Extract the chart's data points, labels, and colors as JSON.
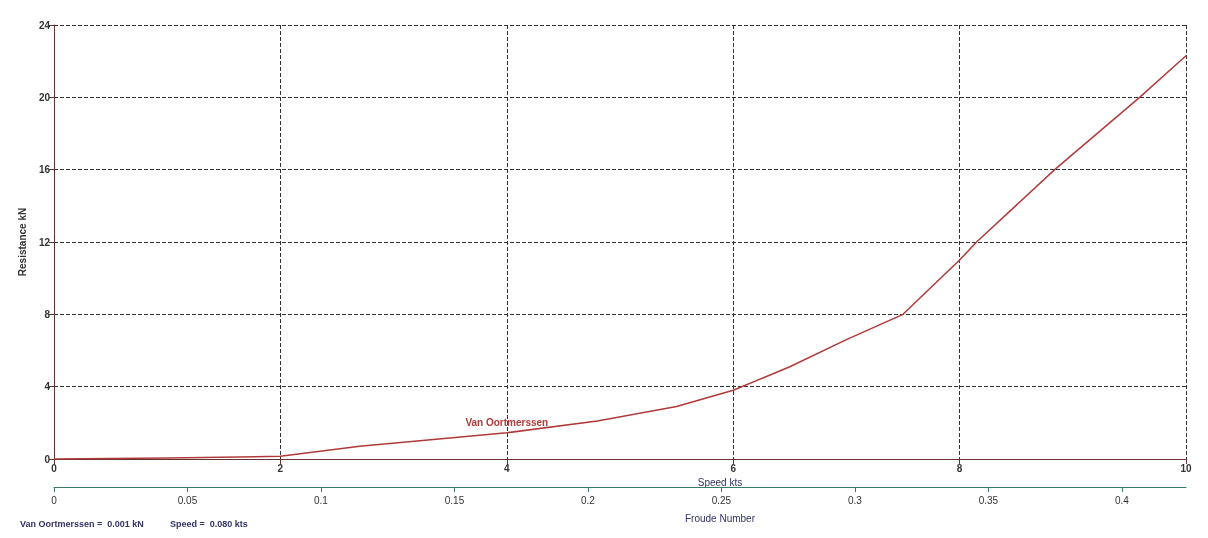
{
  "chart_data": {
    "type": "line",
    "xlabel": "Speed kts",
    "ylabel": "Resistance kN",
    "x2label": "Froude Number",
    "x": [
      0,
      1,
      2,
      2.7,
      3.4,
      4,
      4.8,
      5.5,
      6,
      6.5,
      7,
      7.5,
      8,
      8.15,
      8.84,
      9.59,
      10
    ],
    "series": [
      {
        "name": "Van Oortmerssen",
        "color": "#b03a3a",
        "values": [
          0,
          0.05,
          0.15,
          0.7,
          1.1,
          1.45,
          2.1,
          2.9,
          3.8,
          5.1,
          6.6,
          8,
          11,
          12,
          16,
          20,
          22.3
        ]
      }
    ],
    "xlim": [
      0,
      10
    ],
    "xticks": [
      0,
      2,
      4,
      6,
      8,
      10
    ],
    "ylim": [
      0,
      24
    ],
    "yticks": [
      0,
      4,
      8,
      12,
      16,
      20,
      24
    ],
    "x2lim": [
      0,
      0.424
    ],
    "x2ticks": [
      0,
      0.05,
      0.1,
      0.15,
      0.2,
      0.25,
      0.3,
      0.35,
      0.4
    ],
    "grid": true,
    "line_style": "solid",
    "marker": "none",
    "legend": false,
    "annotations": [
      "Van Oortmerssen =  0.001 kN",
      "Speed =  0.080 kts"
    ]
  }
}
